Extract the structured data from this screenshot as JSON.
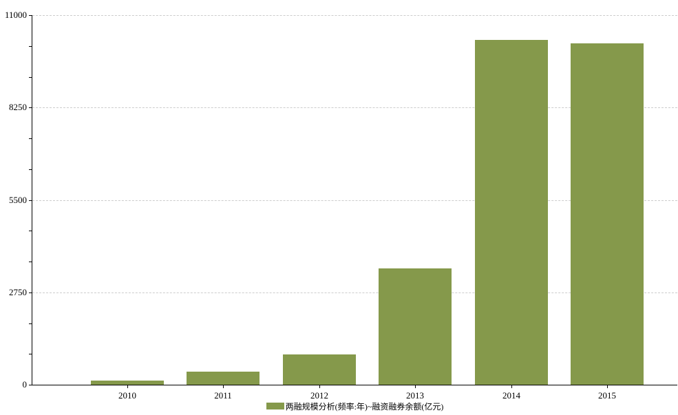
{
  "chart_data": {
    "type": "bar",
    "categories": [
      "2010",
      "2011",
      "2012",
      "2013",
      "2014",
      "2015"
    ],
    "values": [
      128,
      382,
      895,
      3465,
      10257,
      10155
    ],
    "series": [
      {
        "name": "两融规模分析(频率:年)~融资融券余额(亿元)",
        "values": [
          128,
          382,
          895,
          3465,
          10257,
          10155
        ]
      }
    ],
    "title": "",
    "xlabel": "",
    "ylabel": "",
    "ylim": [
      0,
      11000
    ],
    "y_ticks": [
      0,
      2750,
      5500,
      8250,
      11000
    ],
    "y_minor_tick_count": 12,
    "grid": "horizontal-dashed",
    "legend_position": "bottom-center",
    "colors": {
      "bar": "#85994b",
      "gridline": "#cccccc",
      "axis": "#000000",
      "text": "#000000",
      "background": "#ffffff"
    }
  },
  "legend": {
    "label": "两融规模分析(频率:年)~融资融券余额(亿元)"
  }
}
